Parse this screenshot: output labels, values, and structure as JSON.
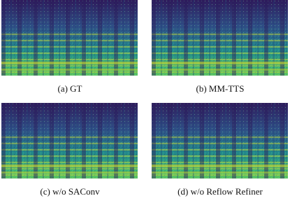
{
  "panels": [
    {
      "caption": "(a) GT"
    },
    {
      "caption": "(b) MM-TTS"
    },
    {
      "caption": "(c) w/o SAConv"
    },
    {
      "caption": "(d) w/o Reflow Refiner"
    }
  ]
}
